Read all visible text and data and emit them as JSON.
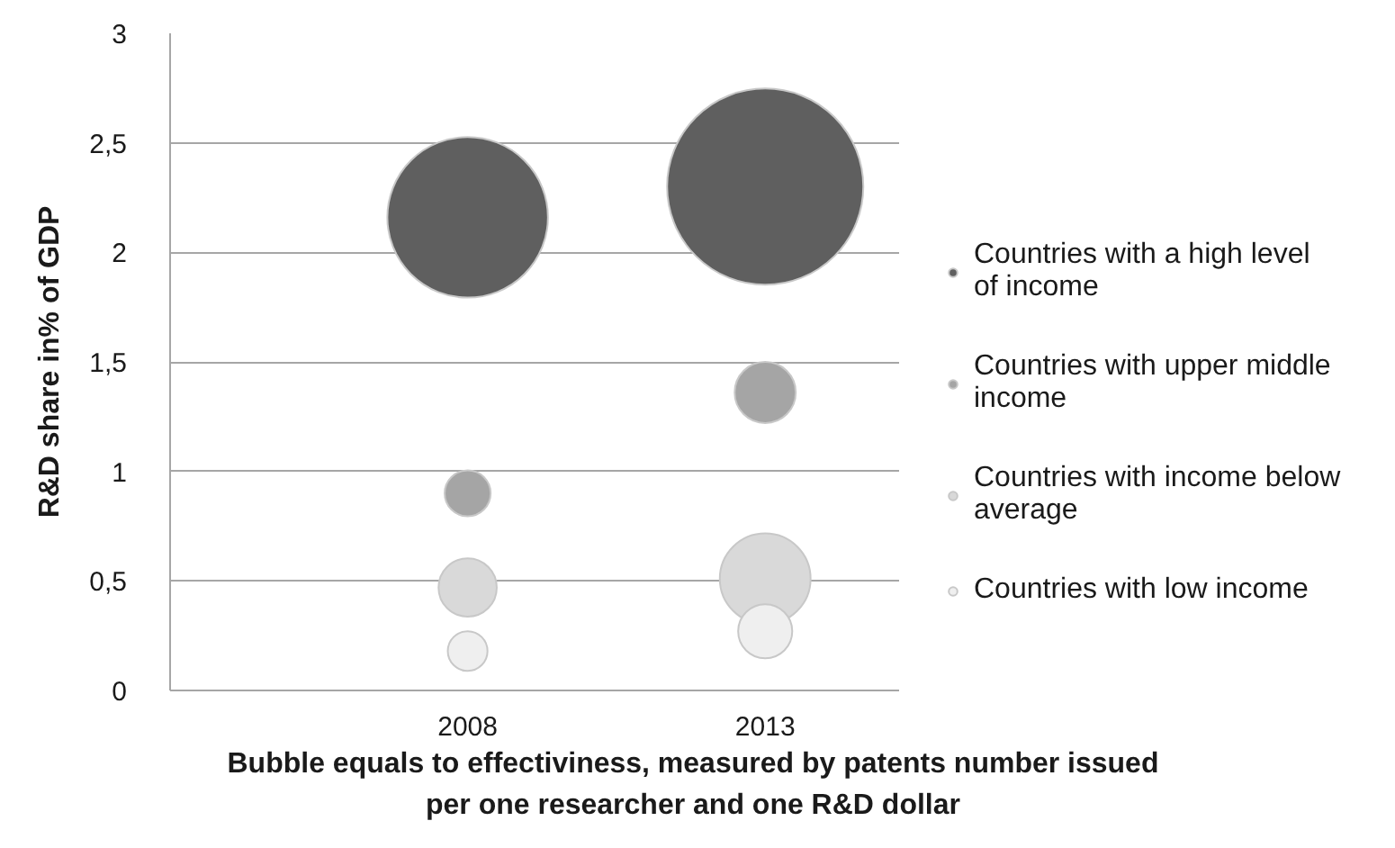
{
  "chart_data": {
    "type": "bubble",
    "xlabel": "Bubble equals to effectiviness, measured by patents number issued per one researcher and one R&D dollar",
    "ylabel": "R&D share in% of GDP",
    "categories": [
      "2008",
      "2013"
    ],
    "ylim": [
      0,
      3
    ],
    "yticks": [
      0,
      {
        "value": 0.5,
        "label": "0,5"
      },
      1,
      {
        "value": 1.5,
        "label": "1,5"
      },
      2,
      {
        "value": 2.5,
        "label": "2,5"
      },
      3
    ],
    "grid": "y",
    "legend": "right",
    "marker": "circle",
    "series": [
      {
        "name": "Countries with a high level of income",
        "color": "#5f5f5f",
        "values": [
          2.16,
          2.3
        ],
        "sizes": [
          0.67,
          1
        ]
      },
      {
        "name": "Countries with upper middle income",
        "color": "#a5a5a5",
        "values": [
          0.9,
          1.36
        ],
        "sizes": [
          0.055,
          0.097
        ]
      },
      {
        "name": "Countries with income below average",
        "color": "#d9d9d9",
        "values": [
          0.47,
          0.51
        ],
        "sizes": [
          0.088,
          0.214
        ]
      },
      {
        "name": "Countries with low income",
        "color": "#efefef",
        "values": [
          0.18,
          0.27
        ],
        "sizes": [
          0.041,
          0.076
        ]
      }
    ]
  }
}
